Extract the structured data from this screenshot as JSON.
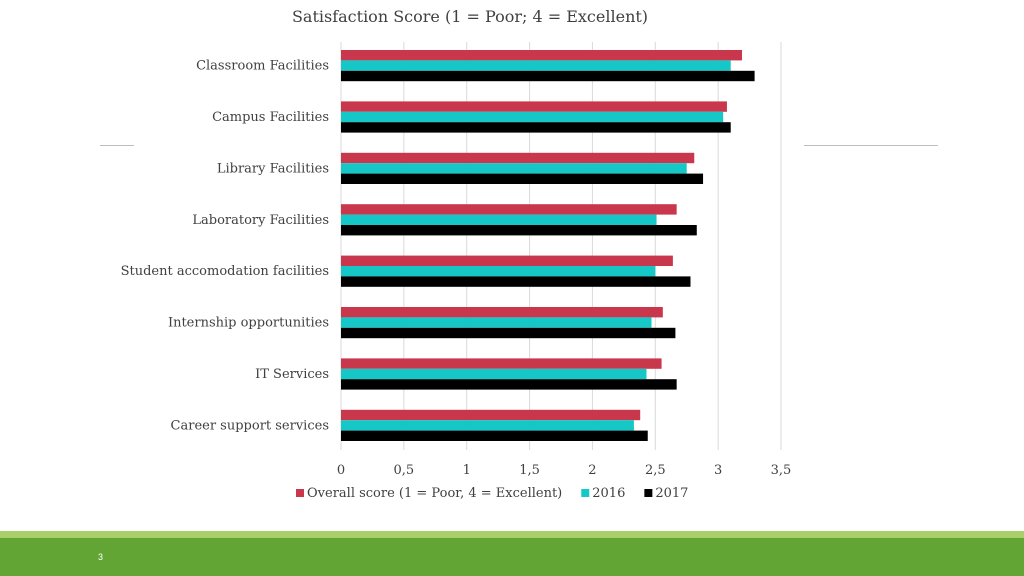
{
  "slide": {
    "page_number": "3"
  },
  "colors": {
    "overall": "#c8374b",
    "y2016": "#16c7c7",
    "y2017": "#000000",
    "grid": "#d9d9d9",
    "text": "#404040",
    "footer": "#63a534",
    "footer_light": "#a8cf6a"
  },
  "chart_data": {
    "type": "bar",
    "orientation": "horizontal",
    "title": "Satisfaction Score (1 = Poor; 4 = Excellent)",
    "xlabel": "",
    "ylabel": "",
    "xlim": [
      0,
      3.5
    ],
    "x_ticks": [
      "0",
      "0,5",
      "1",
      "1,5",
      "2",
      "2,5",
      "3",
      "3,5"
    ],
    "x_tick_values": [
      0,
      0.5,
      1,
      1.5,
      2,
      2.5,
      3,
      3.5
    ],
    "grid": true,
    "legend_position": "bottom",
    "categories": [
      "Classroom Facilities",
      "Campus Facilities",
      "Library Facilities",
      "Laboratory Facilities",
      "Student accomodation facilities",
      "Internship opportunities",
      "IT Services",
      "Career support services"
    ],
    "series": [
      {
        "name": "Overall score (1 = Poor, 4 = Excellent)",
        "color": "#c8374b",
        "values": [
          3.19,
          3.07,
          2.81,
          2.67,
          2.64,
          2.56,
          2.55,
          2.38
        ]
      },
      {
        "name": "2016",
        "color": "#16c7c7",
        "values": [
          3.1,
          3.04,
          2.75,
          2.51,
          2.5,
          2.47,
          2.43,
          2.33
        ]
      },
      {
        "name": "2017",
        "color": "#000000",
        "values": [
          3.29,
          3.1,
          2.88,
          2.83,
          2.78,
          2.66,
          2.67,
          2.44
        ]
      }
    ]
  }
}
